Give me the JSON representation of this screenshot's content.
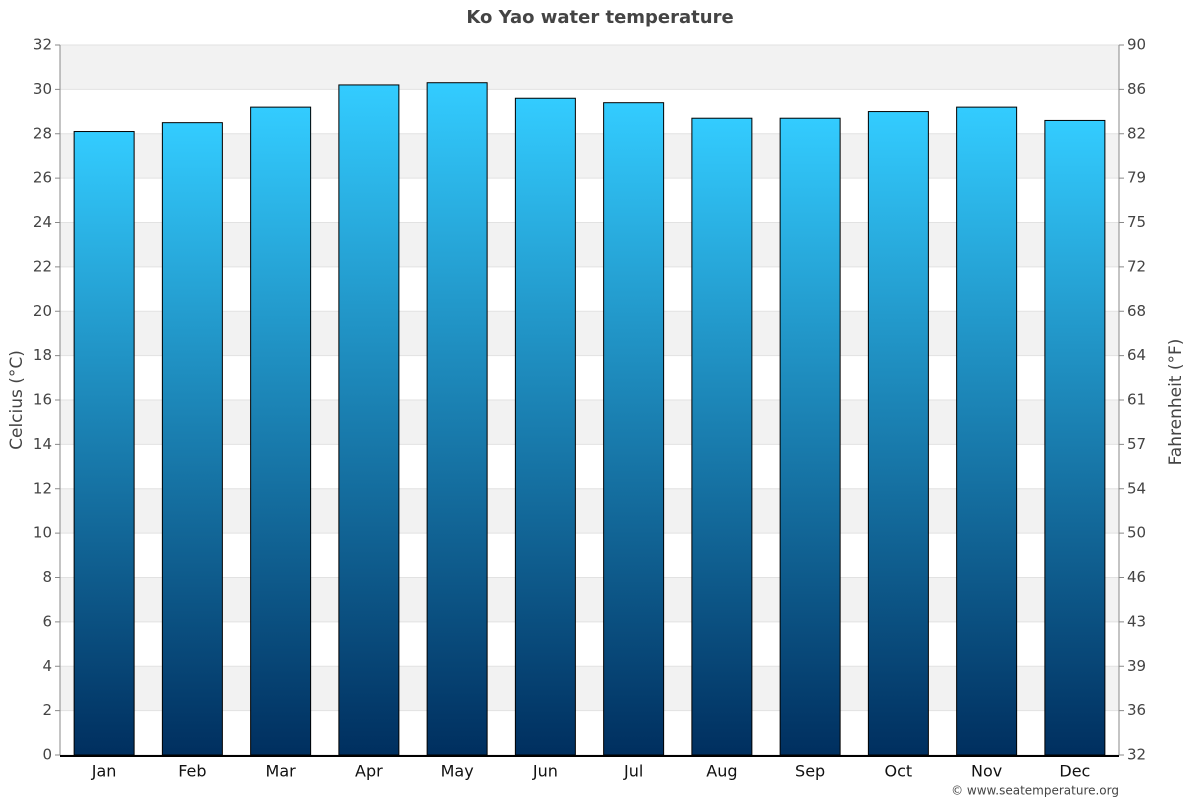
{
  "chart_data": {
    "type": "bar",
    "title": "Ko Yao water temperature",
    "categories": [
      "Jan",
      "Feb",
      "Mar",
      "Apr",
      "May",
      "Jun",
      "Jul",
      "Aug",
      "Sep",
      "Oct",
      "Nov",
      "Dec"
    ],
    "values": [
      28.1,
      28.5,
      29.2,
      30.2,
      30.3,
      29.6,
      29.4,
      28.7,
      28.7,
      29.0,
      29.2,
      28.6
    ],
    "gradient": [
      "#33ccff",
      "#002f5f"
    ],
    "ylabel": "Celcius (°C)",
    "y2label": "Fahrenheit (°F)",
    "ylim": [
      0,
      32
    ],
    "yticks": [
      0,
      2,
      4,
      6,
      8,
      10,
      12,
      14,
      16,
      18,
      20,
      22,
      24,
      26,
      28,
      30,
      32
    ],
    "y2lim": [
      32,
      89.6
    ],
    "y2ticks": [
      32,
      {
        "value": 35.6,
        "label": "36"
      },
      {
        "value": 39.2,
        "label": "39"
      },
      {
        "value": 42.8,
        "label": "43"
      },
      {
        "value": 46.4,
        "label": "46"
      },
      50,
      {
        "value": 53.6,
        "label": "54"
      },
      {
        "value": 57.2,
        "label": "57"
      },
      {
        "value": 60.8,
        "label": "61"
      },
      {
        "value": 64.4,
        "label": "64"
      },
      68,
      {
        "value": 71.6,
        "label": "72"
      },
      {
        "value": 75.2,
        "label": "75"
      },
      {
        "value": 78.8,
        "label": "79"
      },
      {
        "value": 82.4,
        "label": "82"
      },
      86,
      {
        "value": 89.6,
        "label": "90"
      }
    ],
    "grid": true,
    "banded": true,
    "credit": "© www.seatemperature.org"
  }
}
